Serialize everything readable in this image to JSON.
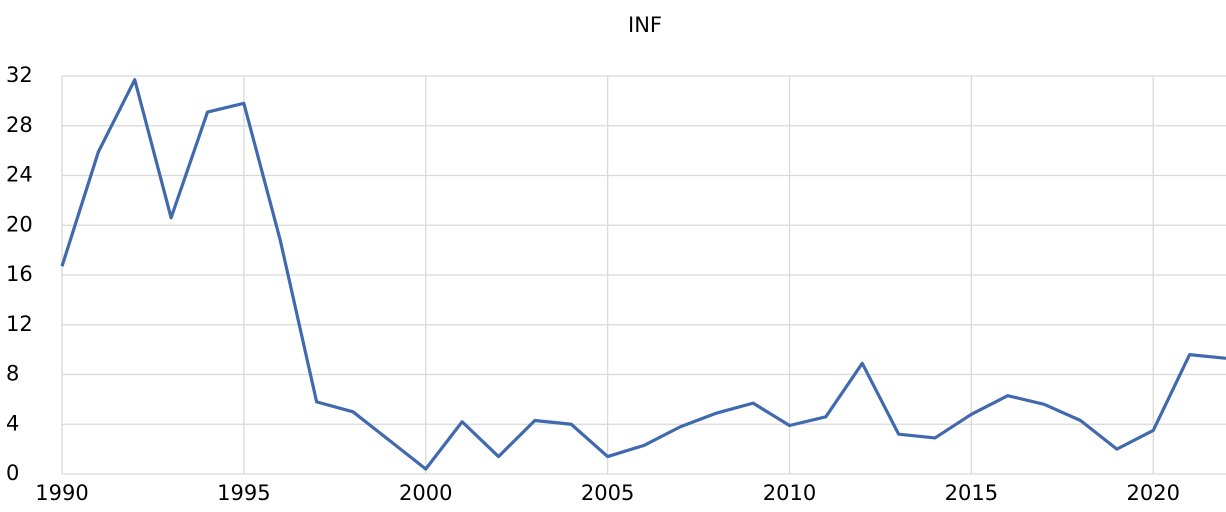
{
  "chart_data": {
    "type": "line",
    "title": "INF",
    "x": [
      1990,
      1991,
      1992,
      1993,
      1994,
      1995,
      1996,
      1997,
      1998,
      1999,
      2000,
      2001,
      2002,
      2003,
      2004,
      2005,
      2006,
      2007,
      2008,
      2009,
      2010,
      2011,
      2012,
      2013,
      2014,
      2015,
      2016,
      2017,
      2018,
      2019,
      2020,
      2021,
      2022
    ],
    "series": [
      {
        "name": "INF",
        "color": "#4169ae",
        "values": [
          16.7,
          25.9,
          31.7,
          20.6,
          29.1,
          29.8,
          18.8,
          5.8,
          5.0,
          2.7,
          0.4,
          4.2,
          1.4,
          4.3,
          4.0,
          1.4,
          2.3,
          3.8,
          4.9,
          5.7,
          3.9,
          4.6,
          8.9,
          3.2,
          2.9,
          4.8,
          6.3,
          5.6,
          4.3,
          2.0,
          3.5,
          9.6,
          9.3
        ]
      }
    ],
    "xlim": [
      1990,
      2022
    ],
    "xticks": [
      1990,
      1995,
      2000,
      2005,
      2010,
      2015,
      2020
    ],
    "ylim": [
      0,
      32
    ],
    "yticks": [
      0,
      4,
      8,
      12,
      16,
      20,
      24,
      28,
      32
    ],
    "grid": true
  }
}
